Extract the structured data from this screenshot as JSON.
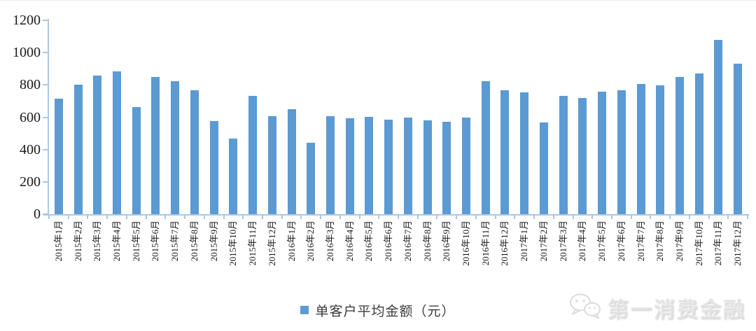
{
  "chart_data": {
    "type": "bar",
    "title": "",
    "legend": "单客户平均金额（元）",
    "legend_position": "bottom-center",
    "grid": false,
    "categories": [
      "2015年1月",
      "2015年2月",
      "2015年3月",
      "2015年4月",
      "2015年5月",
      "2015年6月",
      "2015年7月",
      "2015年8月",
      "2015年9月",
      "2015年10月",
      "2015年11月",
      "2015年12月",
      "2016年1月",
      "2016年2月",
      "2016年3月",
      "2016年4月",
      "2016年5月",
      "2016年6月",
      "2016年7月",
      "2016年8月",
      "2016年9月",
      "2016年10月",
      "2016年11月",
      "2016年12月",
      "2017年1月",
      "2017年2月",
      "2017年3月",
      "2017年4月",
      "2017年5月",
      "2017年6月",
      "2017年7月",
      "2017年8月",
      "2017年9月",
      "2017年10月",
      "2017年11月",
      "2017年12月"
    ],
    "values": [
      715,
      802,
      856,
      882,
      662,
      850,
      825,
      768,
      577,
      468,
      734,
      605,
      650,
      440,
      606,
      592,
      603,
      586,
      597,
      582,
      574,
      596,
      822,
      766,
      752,
      567,
      734,
      719,
      758,
      768,
      806,
      797,
      851,
      870,
      1080,
      932
    ],
    "xlabel": "",
    "ylabel": "",
    "ylim": [
      0,
      1200
    ],
    "yticks": [
      0,
      200,
      400,
      600,
      800,
      1000,
      1200
    ],
    "colors": {
      "bar": "#5b9ad2",
      "axis": "#aac8e4",
      "tick_label": "#1a1a1a"
    }
  },
  "watermark": {
    "text": "第一消费金融",
    "icon": "wechat-logo"
  }
}
